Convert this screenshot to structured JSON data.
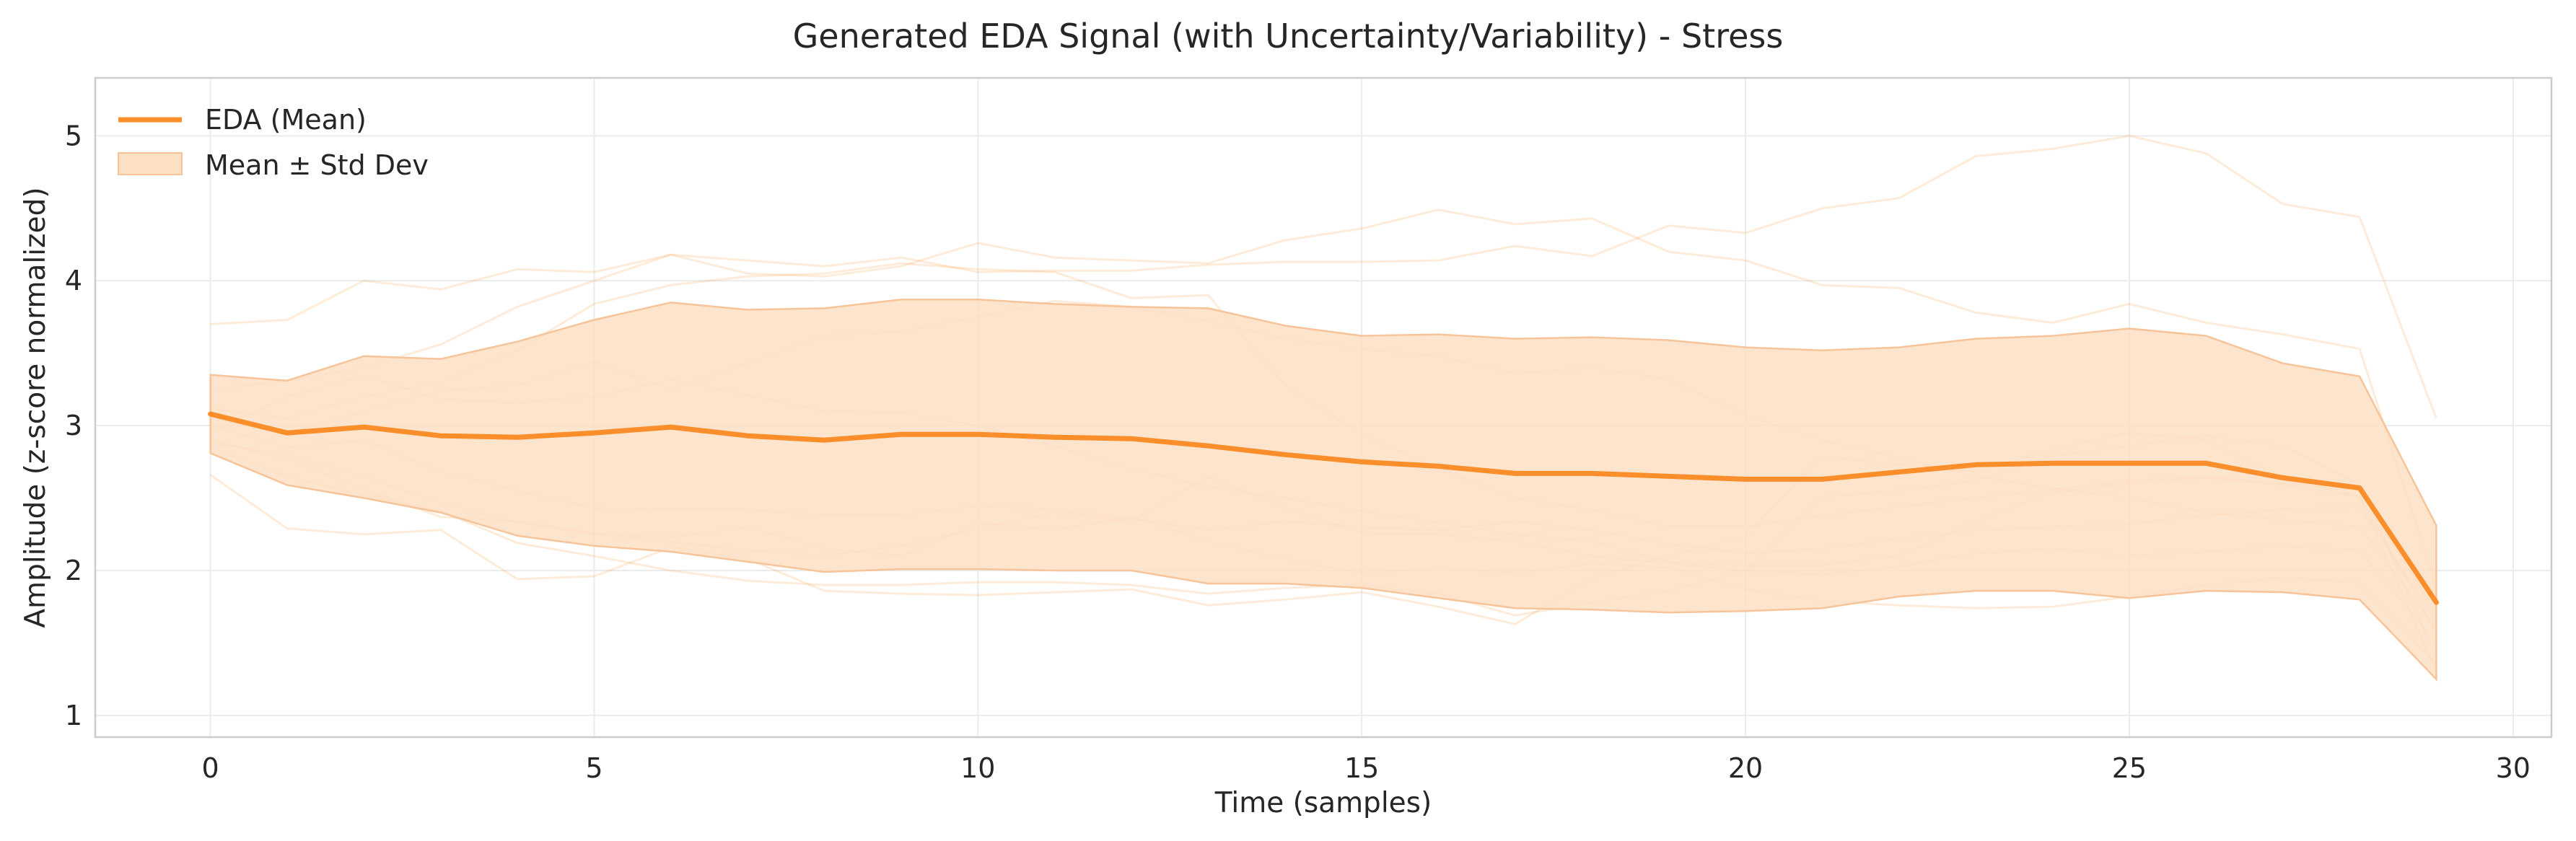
{
  "chart_data": {
    "type": "line",
    "title": "Generated EDA Signal (with Uncertainty/Variability) - Stress",
    "xlabel": "Time (samples)",
    "ylabel": "Amplitude (z-score normalized)",
    "xlim": [
      -1.5,
      30.5
    ],
    "ylim": [
      0.85,
      5.4
    ],
    "xticks": [
      0,
      5,
      10,
      15,
      20,
      25,
      30
    ],
    "yticks": [
      1,
      2,
      3,
      4,
      5
    ],
    "grid": true,
    "legend_position": "top-left",
    "legend": [
      "EDA (Mean)",
      "Mean ± Std Dev"
    ],
    "colors": {
      "mean": "#f98e2b",
      "band": "#fddfc4",
      "band_edge": "#f7c49a",
      "samples": "#f98e2b",
      "grid": "#ebebeb",
      "frame": "#cccccc"
    },
    "x": [
      0,
      1,
      2,
      3,
      4,
      5,
      6,
      7,
      8,
      9,
      10,
      11,
      12,
      13,
      14,
      15,
      16,
      17,
      18,
      19,
      20,
      21,
      22,
      23,
      24,
      25,
      26,
      27,
      28,
      29
    ],
    "series": [
      {
        "name": "EDA (Mean)",
        "values": [
          3.08,
          2.95,
          2.99,
          2.93,
          2.92,
          2.95,
          2.99,
          2.93,
          2.9,
          2.94,
          2.94,
          2.92,
          2.91,
          2.86,
          2.8,
          2.75,
          2.72,
          2.67,
          2.67,
          2.65,
          2.63,
          2.63,
          2.68,
          2.73,
          2.74,
          2.74,
          2.74,
          2.64,
          2.57,
          1.78
        ]
      }
    ],
    "band": {
      "name": "Mean ± Std Dev",
      "upper": [
        3.35,
        3.31,
        3.48,
        3.46,
        3.58,
        3.73,
        3.85,
        3.8,
        3.81,
        3.87,
        3.87,
        3.84,
        3.82,
        3.81,
        3.69,
        3.62,
        3.63,
        3.6,
        3.61,
        3.59,
        3.54,
        3.52,
        3.54,
        3.6,
        3.62,
        3.67,
        3.62,
        3.43,
        3.34,
        2.31
      ],
      "lower": [
        2.81,
        2.59,
        2.5,
        2.4,
        2.24,
        2.17,
        2.13,
        2.06,
        1.99,
        2.01,
        2.01,
        2.0,
        2.0,
        1.91,
        1.91,
        1.88,
        1.81,
        1.74,
        1.73,
        1.71,
        1.72,
        1.74,
        1.82,
        1.86,
        1.86,
        1.81,
        1.86,
        1.85,
        1.8,
        1.25
      ]
    },
    "samples": [
      [
        3.7,
        3.73,
        4.0,
        3.94,
        4.08,
        4.06,
        4.18,
        4.14,
        4.1,
        4.16,
        4.06,
        4.07,
        4.07,
        4.11,
        4.13,
        4.13,
        4.14,
        4.24,
        4.17,
        4.38,
        4.33,
        4.5,
        4.57,
        4.86,
        4.91,
        5.0,
        4.88,
        4.53,
        4.44,
        3.05
      ],
      [
        3.25,
        3.31,
        3.4,
        3.56,
        3.82,
        4.0,
        4.18,
        4.05,
        4.03,
        4.1,
        4.26,
        4.16,
        4.14,
        4.12,
        4.28,
        4.36,
        4.49,
        4.39,
        4.43,
        4.2,
        4.14,
        3.97,
        3.95,
        3.78,
        3.71,
        3.84,
        3.71,
        3.63,
        3.53,
        1.88
      ],
      [
        3.12,
        3.05,
        3.2,
        3.3,
        3.52,
        3.84,
        3.97,
        4.03,
        4.05,
        4.12,
        4.08,
        4.06,
        3.88,
        3.9,
        3.28,
        2.94,
        2.7,
        2.5,
        2.42,
        2.3,
        2.3,
        2.38,
        2.44,
        2.5,
        2.56,
        2.62,
        2.65,
        2.6,
        2.55,
        1.7
      ],
      [
        3.05,
        2.95,
        3.1,
        3.24,
        3.28,
        3.44,
        3.25,
        3.43,
        3.62,
        3.65,
        3.75,
        3.86,
        3.82,
        3.72,
        3.6,
        3.53,
        3.48,
        3.36,
        3.4,
        3.32,
        3.07,
        2.9,
        2.78,
        2.65,
        2.57,
        2.5,
        2.4,
        2.35,
        2.3,
        1.6
      ],
      [
        2.95,
        3.2,
        3.35,
        3.18,
        3.16,
        3.2,
        3.32,
        3.21,
        3.1,
        3.09,
        3.0,
        2.86,
        2.7,
        2.58,
        2.5,
        2.41,
        2.33,
        2.25,
        2.2,
        2.06,
        2.03,
        2.04,
        2.1,
        2.34,
        2.54,
        2.6,
        2.64,
        2.59,
        2.51,
        1.58
      ],
      [
        3.0,
        2.85,
        2.9,
        2.68,
        2.55,
        2.43,
        2.42,
        2.42,
        2.38,
        2.38,
        2.45,
        2.42,
        2.36,
        2.28,
        2.34,
        2.3,
        2.28,
        2.34,
        2.28,
        2.18,
        2.12,
        2.15,
        2.22,
        2.28,
        2.3,
        2.32,
        2.38,
        2.42,
        2.44,
        1.66
      ],
      [
        2.88,
        2.8,
        2.65,
        2.47,
        2.33,
        2.25,
        2.2,
        2.14,
        2.1,
        2.17,
        2.29,
        2.4,
        2.34,
        2.65,
        2.43,
        2.26,
        2.25,
        2.2,
        2.1,
        2.05,
        2.0,
        1.97,
        2.03,
        2.12,
        2.15,
        2.1,
        2.13,
        2.17,
        2.14,
        1.5
      ],
      [
        2.85,
        2.65,
        2.52,
        2.41,
        2.19,
        2.1,
        2.0,
        1.93,
        1.9,
        1.9,
        1.92,
        1.92,
        1.9,
        1.84,
        1.88,
        1.9,
        1.84,
        1.69,
        1.78,
        1.86,
        2.0,
        2.51,
        2.55,
        2.62,
        2.79,
        2.86,
        2.93,
        2.86,
        2.6,
        1.4
      ],
      [
        2.66,
        2.29,
        2.25,
        2.28,
        1.94,
        1.96,
        2.16,
        2.08,
        1.86,
        1.84,
        1.83,
        1.85,
        1.87,
        1.76,
        1.8,
        1.85,
        1.75,
        1.63,
        1.95,
        2.1,
        2.24,
        2.79,
        2.73,
        2.68,
        2.84,
        2.95,
        2.9,
        2.64,
        2.51,
        1.3
      ],
      [
        2.9,
        2.77,
        2.56,
        2.37,
        2.34,
        2.26,
        2.23,
        2.3,
        2.15,
        2.1,
        2.33,
        2.28,
        2.37,
        2.2,
        2.08,
        1.98,
        2.02,
        1.98,
        2.05,
        2.02,
        1.87,
        1.79,
        1.76,
        1.74,
        1.75,
        1.82,
        1.9,
        1.95,
        1.92,
        1.35
      ]
    ]
  }
}
